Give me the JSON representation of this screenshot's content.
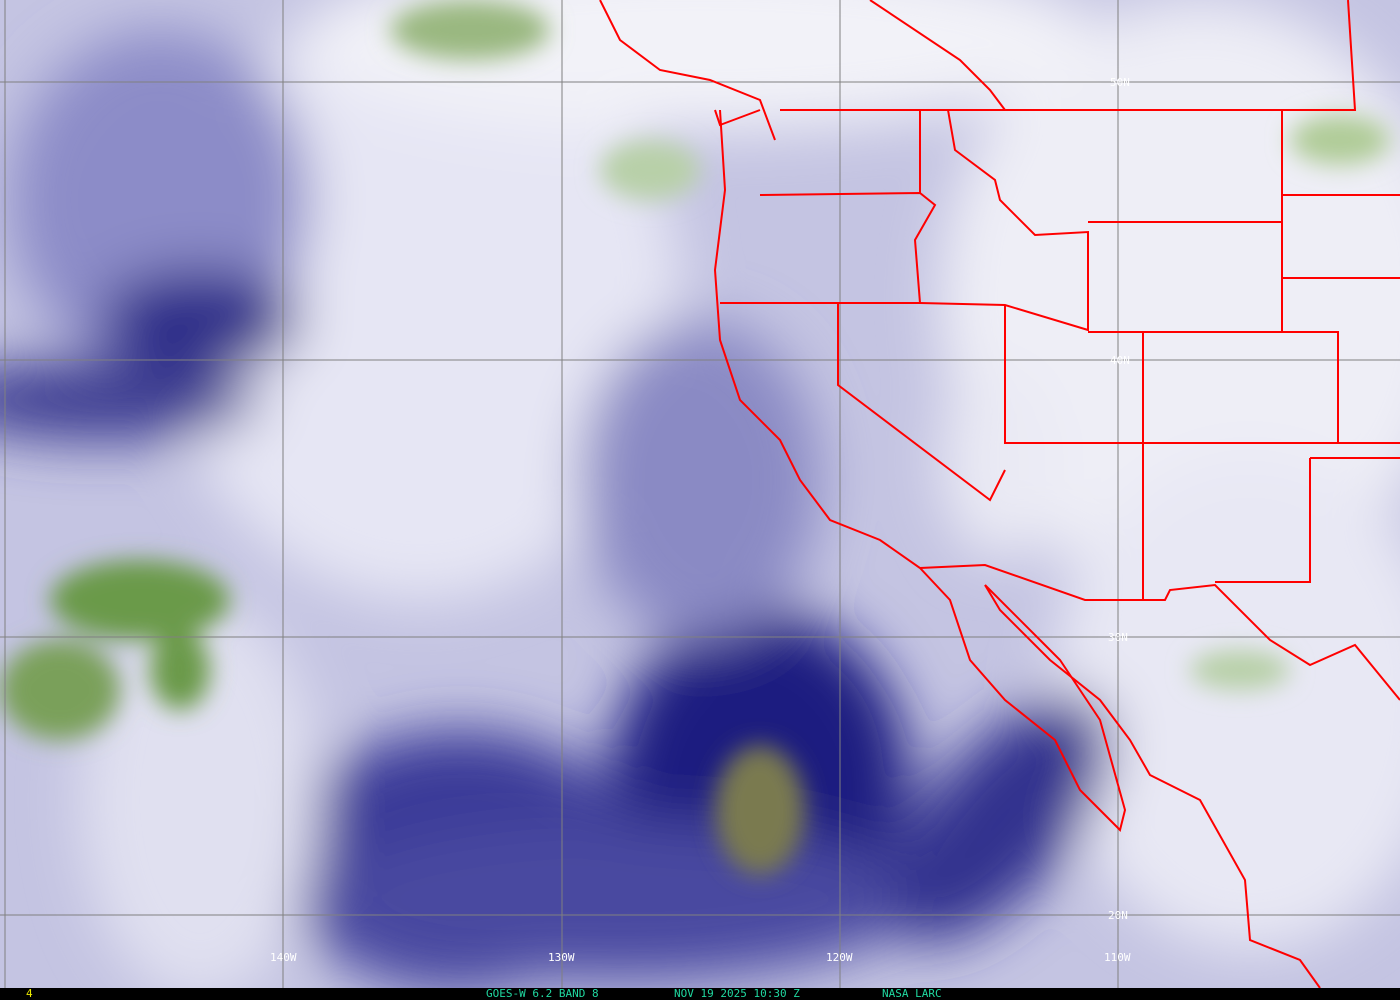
{
  "image": {
    "satellite_label": "GOES-W 6.2 BAND 8",
    "timestamp": "NOV 19 2025 10:30 Z",
    "source": "NASA LARC",
    "frame_number": "4"
  },
  "grid": {
    "longitude_labels": [
      "140W",
      "130W",
      "120W",
      "110W"
    ],
    "latitude_labels": [
      "50N",
      "40N",
      "30N",
      "20N"
    ],
    "grid_color": "#808080"
  },
  "colors": {
    "borders": "#ff0000",
    "dry_air": "#1a1a80",
    "moist": "#f0f0f8",
    "cold_cloud": "#5a8a3a",
    "very_dry": "#7a7a50"
  }
}
